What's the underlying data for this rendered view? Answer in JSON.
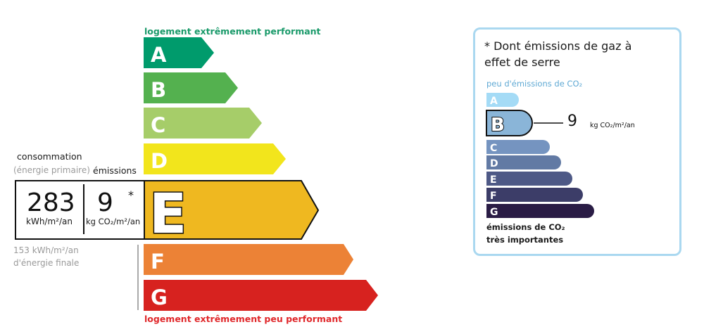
{
  "dpe": {
    "top_label": "logement extrêmement performant",
    "bottom_label": "logement extrêmement peu performant",
    "top_label_color": "#1a9a6a",
    "bottom_label_color": "#e0282b",
    "classes": [
      {
        "letter": "A",
        "color": "#009b6c"
      },
      {
        "letter": "B",
        "color": "#54b14f"
      },
      {
        "letter": "C",
        "color": "#a6cd69"
      },
      {
        "letter": "D",
        "color": "#f2e51c"
      },
      {
        "letter": "E",
        "color": "#efb820"
      },
      {
        "letter": "F",
        "color": "#ec8236"
      },
      {
        "letter": "G",
        "color": "#d7221f"
      }
    ],
    "current_class": "E",
    "consumption_title": "consommation",
    "consumption_subtitle": "(énergie primaire)",
    "emissions_title": "émissions",
    "consumption_value": "283",
    "consumption_unit": "kWh/m²/an",
    "emissions_value": "9",
    "emissions_unit": "kg CO₂/m²/an",
    "asterisk": "*",
    "final_energy_value": "153 kWh/m²/an",
    "final_energy_label": "d'énergie finale"
  },
  "ges": {
    "note_line1": "* Dont émissions de gaz à",
    "note_line2": "effet de serre",
    "top_label": "peu d'émissions de CO₂",
    "bottom_label_line1": "émissions de CO₂",
    "bottom_label_line2": "très importantes",
    "classes": [
      {
        "letter": "A",
        "color": "#a4dbf6"
      },
      {
        "letter": "B",
        "color": "#8ab5d8"
      },
      {
        "letter": "C",
        "color": "#7594c0"
      },
      {
        "letter": "D",
        "color": "#627aa4"
      },
      {
        "letter": "E",
        "color": "#4e5986"
      },
      {
        "letter": "F",
        "color": "#3c3d68"
      },
      {
        "letter": "G",
        "color": "#2a1c45"
      }
    ],
    "current_class": "B",
    "value": "9",
    "unit": "kg CO₂/m²/an"
  }
}
